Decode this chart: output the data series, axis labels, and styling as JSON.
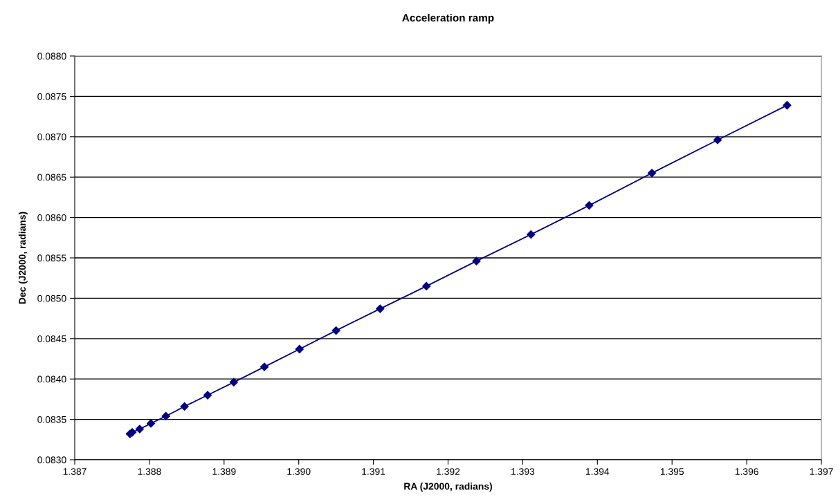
{
  "chart_data": {
    "type": "line",
    "title": "Acceleration ramp",
    "xlabel": "RA (J2000, radians)",
    "ylabel": "Dec (J2000, radians)",
    "series": [
      {
        "color": "#000080",
        "x": [
          1.38774,
          1.38777,
          1.38787,
          1.38802,
          1.38822,
          1.38847,
          1.38878,
          1.38913,
          1.38954,
          1.39001,
          1.3905,
          1.39109,
          1.39171,
          1.39238,
          1.39311,
          1.39389,
          1.39473,
          1.39561,
          1.39654
        ],
        "values": [
          0.08332,
          0.08334,
          0.08338,
          0.08345,
          0.08354,
          0.08366,
          0.0838,
          0.08396,
          0.08415,
          0.08437,
          0.0846,
          0.08487,
          0.08515,
          0.08546,
          0.08579,
          0.08615,
          0.08655,
          0.08696,
          0.08739
        ]
      }
    ],
    "xlim": [
      1.387,
      1.397
    ],
    "xticks": [
      1.387,
      1.388,
      1.389,
      {
        "value": 1.39,
        "label": "1.390"
      },
      1.391,
      1.392,
      1.393,
      1.394,
      1.395,
      1.396,
      1.397
    ],
    "ylim": [
      0.083,
      0.088
    ],
    "yticks": [
      {
        "value": 0.083,
        "label": "0.0830"
      },
      0.0835,
      {
        "value": 0.084,
        "label": "0.0840"
      },
      0.0845,
      {
        "value": 0.085,
        "label": "0.0850"
      },
      0.0855,
      {
        "value": 0.086,
        "label": "0.0860"
      },
      0.0865,
      {
        "value": 0.087,
        "label": "0.0870"
      },
      0.0875,
      {
        "value": 0.088,
        "label": "0.0880"
      }
    ],
    "grid": "y",
    "marker": "diamond",
    "line_style": "solid",
    "legend": false
  }
}
